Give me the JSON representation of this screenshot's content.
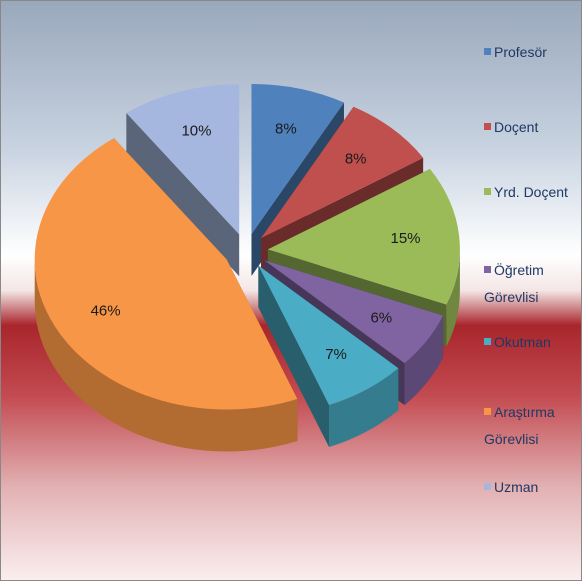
{
  "chart_data": {
    "type": "pie",
    "categories": [
      "Profesör",
      "Doçent",
      "Yrd. Doçent",
      "Öğretim Görevlisi",
      "Okutman",
      "Araştırma Görevlisi",
      "Uzman"
    ],
    "values": [
      8,
      8,
      15,
      6,
      7,
      46,
      10
    ],
    "value_labels": [
      "8%",
      "8%",
      "15%",
      "6%",
      "7%",
      "46%",
      "10%"
    ],
    "colors": [
      "#4f81bd",
      "#c0504d",
      "#9bbb59",
      "#8064a2",
      "#4bacc6",
      "#f79646",
      "#a5b7de"
    ],
    "legend": "right"
  }
}
